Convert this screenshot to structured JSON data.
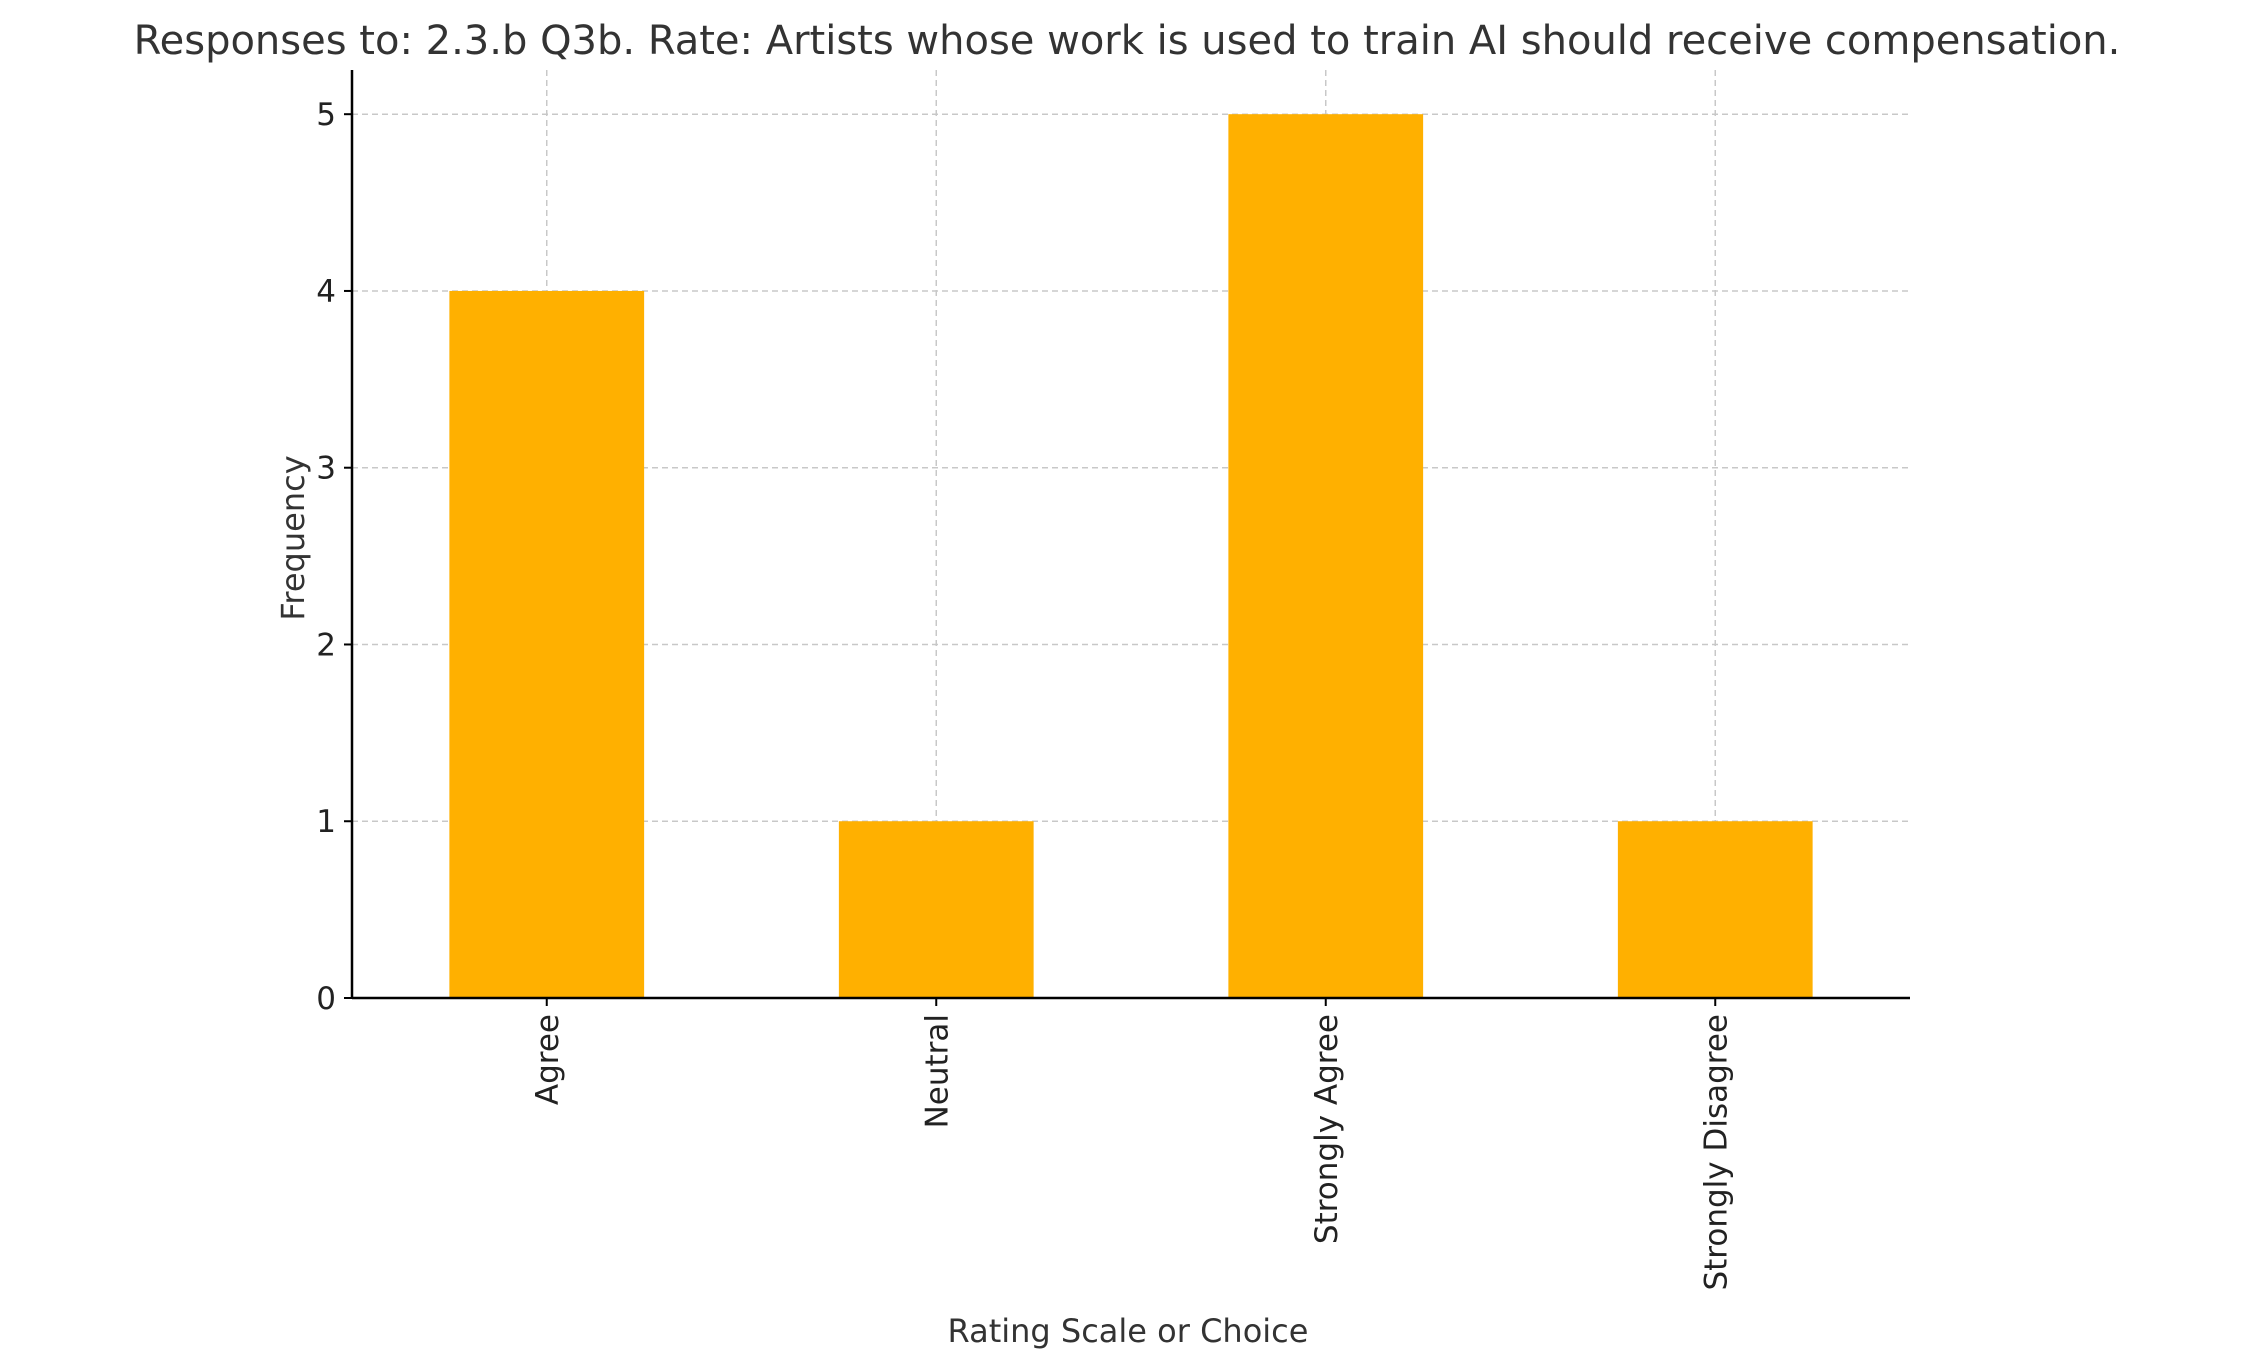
{
  "chart_data": {
    "type": "bar",
    "title": "Responses to: 2.3.b Q3b. Rate: Artists whose work is used to train AI should receive compensation.",
    "xlabel": "Rating Scale or Choice",
    "ylabel": "Frequency",
    "categories": [
      "Agree",
      "Neutral",
      "Strongly Agree",
      "Strongly Disagree"
    ],
    "values": [
      4,
      1,
      5,
      1
    ],
    "ylim": [
      0,
      5.25
    ],
    "yticks": [
      0,
      1,
      2,
      3,
      4,
      5
    ],
    "grid": true,
    "bar_color": "#FFB000"
  }
}
